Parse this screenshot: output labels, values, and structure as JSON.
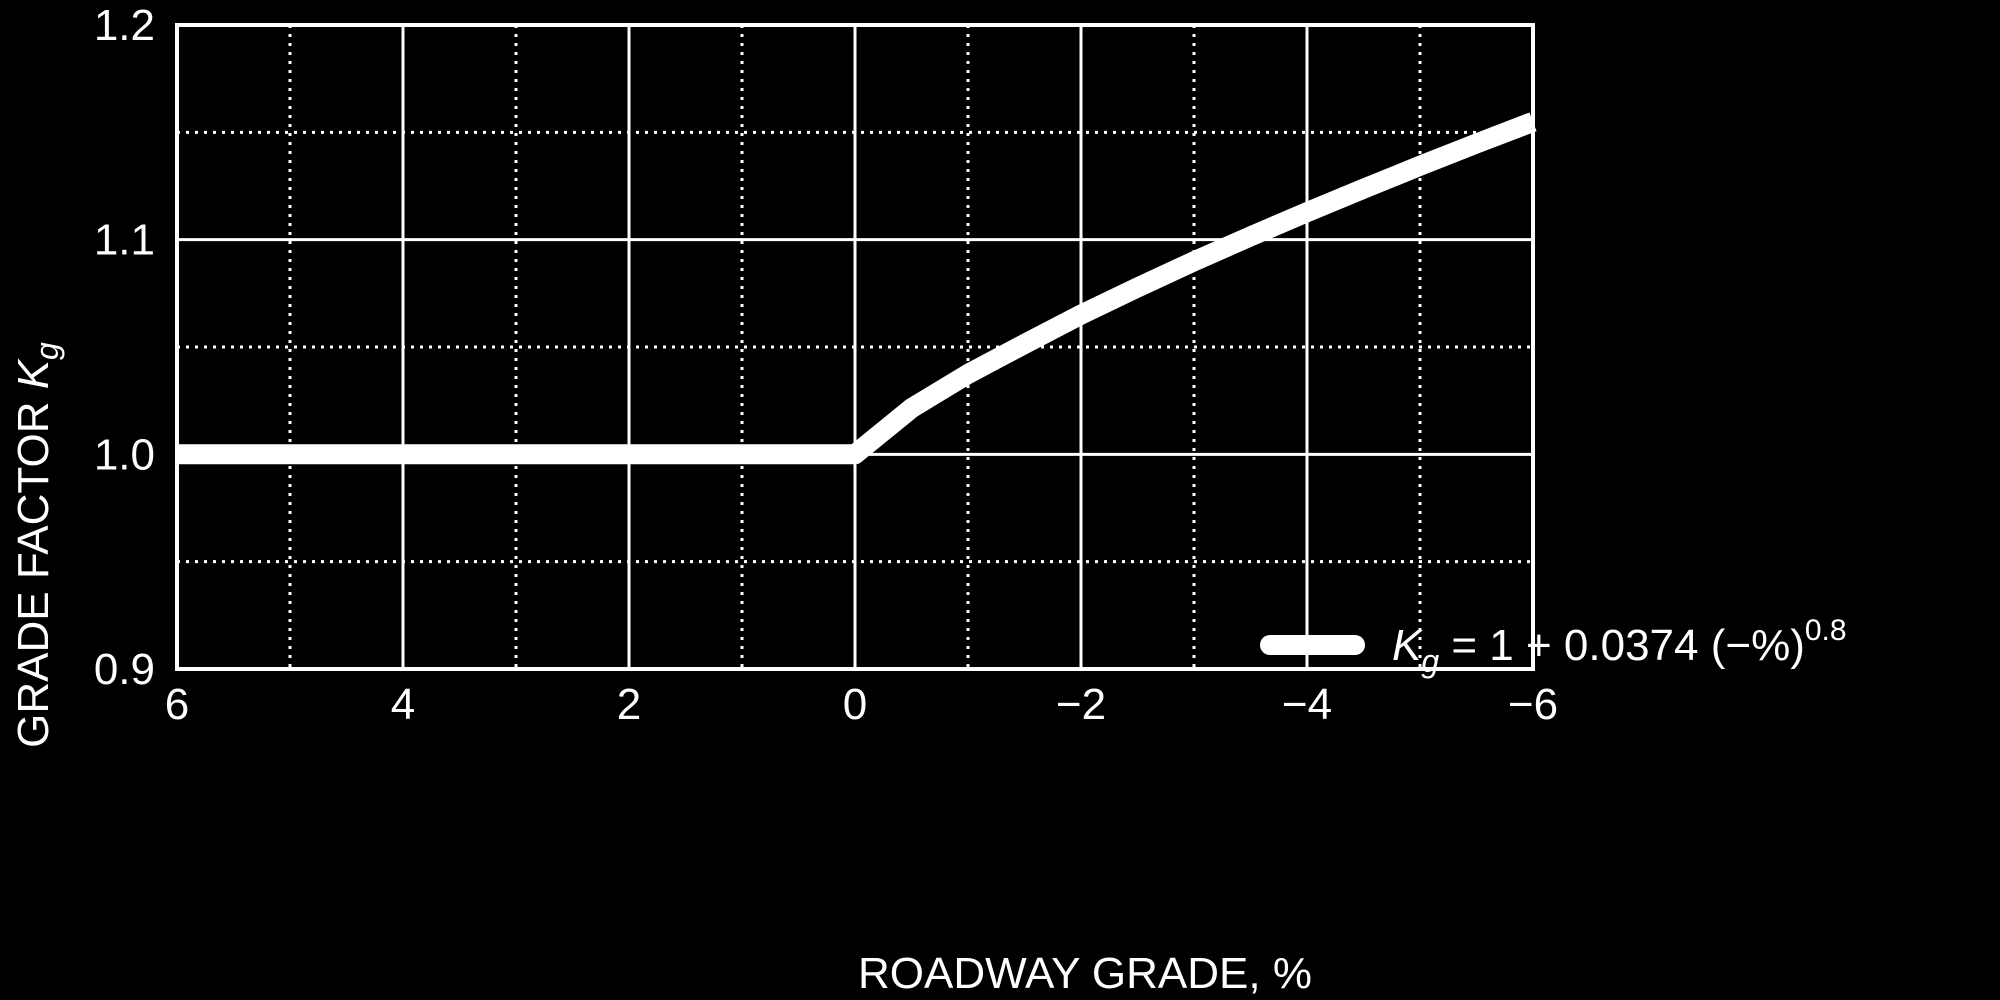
{
  "colors": {
    "background": "#000000",
    "foreground": "#ffffff"
  },
  "chart_data": {
    "type": "line",
    "title": "",
    "xlabel": "ROADWAY GRADE, %",
    "ylabel_main": "GRADE FACTOR ",
    "ylabel_symbol": "K",
    "ylabel_subscript": "g",
    "xlim": [
      6,
      -6
    ],
    "ylim": [
      0.9,
      1.2
    ],
    "x_ticks": [
      6,
      4,
      2,
      0,
      -2,
      -4,
      -6
    ],
    "x_tick_labels": [
      "6",
      "4",
      "2",
      "0",
      "−2",
      "−4",
      "−6"
    ],
    "y_ticks": [
      0.9,
      1.0,
      1.1,
      1.2
    ],
    "y_tick_labels": [
      "0.9",
      "1.0",
      "1.1",
      "1.2"
    ],
    "x_minor_grid": [
      5,
      3,
      1,
      -1,
      -3,
      -5
    ],
    "y_minor_grid": [
      0.95,
      1.05,
      1.15
    ],
    "grid": true,
    "legend_position": "lower-right",
    "legend": {
      "symbol": "K",
      "subscript": "g",
      "equation": " = 1 + 0.0374 (−%)",
      "exponent": "0.8"
    },
    "series": [
      {
        "x": [
          6,
          5,
          4,
          3,
          2,
          1,
          0,
          -0.5,
          -1,
          -1.5,
          -2,
          -2.5,
          -3,
          -3.5,
          -4,
          -4.5,
          -5,
          -5.5,
          -6
        ],
        "y": [
          1.0,
          1.0,
          1.0,
          1.0,
          1.0,
          1.0,
          1.0,
          1.0215,
          1.0374,
          1.0514,
          1.0651,
          1.0777,
          1.0899,
          1.1015,
          1.1128,
          1.1237,
          1.1344,
          1.1448,
          1.1549
        ]
      }
    ]
  }
}
